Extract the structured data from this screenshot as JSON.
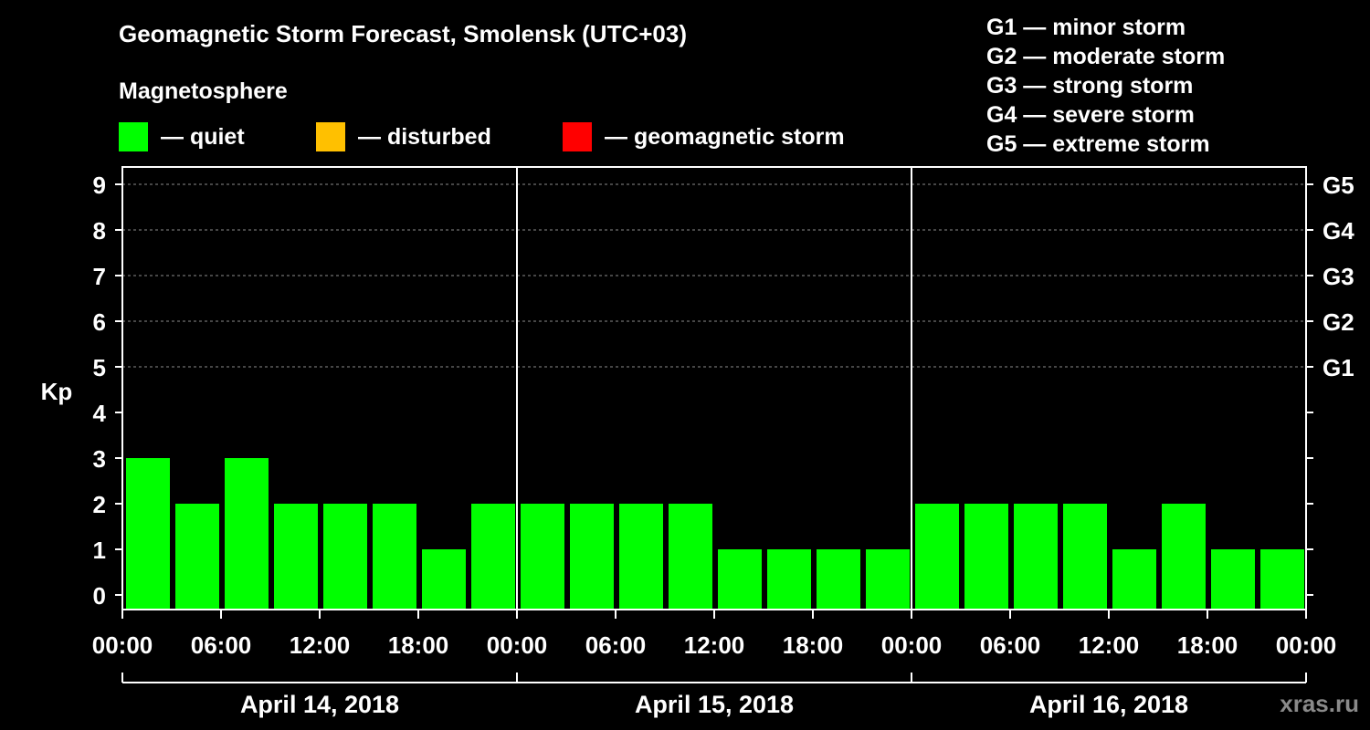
{
  "title": "Geomagnetic Storm Forecast, Smolensk (UTC+03)",
  "subtitle": "Magnetosphere",
  "legend": [
    {
      "color": "#00ff00",
      "label": "— quiet"
    },
    {
      "color": "#ffc000",
      "label": "— disturbed"
    },
    {
      "color": "#ff0000",
      "label": "— geomagnetic storm"
    }
  ],
  "storm_levels": [
    "G1 — minor storm",
    "G2 — moderate storm",
    "G3 — strong storm",
    "G4 — severe storm",
    "G5 — extreme storm"
  ],
  "watermark": "xras.ru",
  "chart_data": {
    "type": "bar",
    "ylabel": "Kp",
    "ylim": [
      0,
      9
    ],
    "yticks": [
      "0",
      "1",
      "2",
      "3",
      "4",
      "5",
      "6",
      "7",
      "8",
      "9"
    ],
    "right_ticks": [
      {
        "value": 5,
        "label": "G1"
      },
      {
        "value": 6,
        "label": "G2"
      },
      {
        "value": 7,
        "label": "G3"
      },
      {
        "value": 8,
        "label": "G4"
      },
      {
        "value": 9,
        "label": "G5"
      }
    ],
    "grid": "dashed horizontal at Kp 5-9",
    "xtick_labels": [
      "00:00",
      "06:00",
      "12:00",
      "18:00",
      "00:00",
      "06:00",
      "12:00",
      "18:00",
      "00:00",
      "06:00",
      "12:00",
      "18:00",
      "00:00"
    ],
    "days": [
      "April 14, 2018",
      "April 15, 2018",
      "April 16, 2018"
    ],
    "interval_hours": 3,
    "bar_color": "#00ff00",
    "values": [
      3,
      2,
      3,
      2,
      2,
      2,
      1,
      2,
      2,
      2,
      2,
      2,
      1,
      1,
      1,
      1,
      2,
      2,
      2,
      2,
      1,
      2,
      1,
      1
    ]
  }
}
